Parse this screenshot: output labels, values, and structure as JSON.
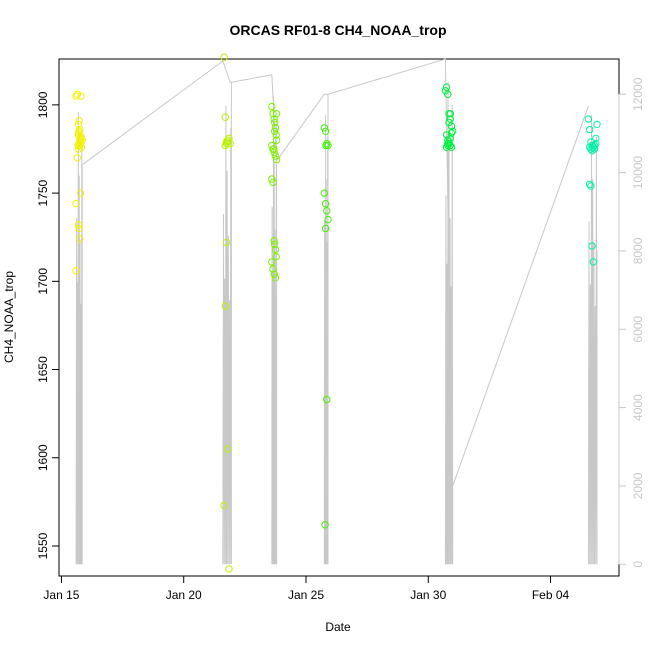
{
  "chart_data": {
    "type": "scatter",
    "title": "ORCAS RF01-8 CH4_NOAA_trop",
    "xlabel": "Date",
    "ylabel": "CH4_NOAA_trop",
    "x_ticks": [
      {
        "label": "Jan 15",
        "day": 15
      },
      {
        "label": "Jan 20",
        "day": 20
      },
      {
        "label": "Jan 25",
        "day": 25
      },
      {
        "label": "Jan 30",
        "day": 30
      },
      {
        "label": "Feb 04",
        "day": 35
      }
    ],
    "xlim": [
      14.9,
      37.8
    ],
    "ylim": [
      1533,
      1826
    ],
    "y_ticks": [
      1550,
      1600,
      1650,
      1700,
      1750,
      1800
    ],
    "y2_ticks": [
      0,
      2000,
      4000,
      6000,
      8000,
      10000,
      12000
    ],
    "y2lim": [
      -300,
      12900
    ],
    "altitude_color": "#c8c8c8",
    "altitude_profiles": [
      {
        "start": 15.6,
        "end": 15.85,
        "top": 12100,
        "level": 10200
      },
      {
        "start": 21.6,
        "end": 21.95,
        "top": 12250,
        "level": 12300
      },
      {
        "start": 23.6,
        "end": 23.8,
        "top": 12500,
        "level": 10200
      },
      {
        "start": 25.75,
        "end": 25.9,
        "top": 12000,
        "level": 12000
      },
      {
        "start": 30.7,
        "end": 31.0,
        "top": 12900,
        "level": 2000
      },
      {
        "start": 36.55,
        "end": 36.9,
        "top": 12000,
        "level": 8000
      }
    ],
    "altitude_connector": [
      [
        15.85,
        10200
      ],
      [
        21.6,
        12850
      ],
      [
        21.9,
        12300
      ],
      [
        23.6,
        12500
      ],
      [
        23.8,
        10300
      ],
      [
        25.75,
        12000
      ],
      [
        25.9,
        12000
      ],
      [
        30.7,
        12900
      ],
      [
        31.0,
        2000
      ],
      [
        36.55,
        11700
      ]
    ],
    "series": [
      {
        "color": "#f2f200",
        "x": [
          15.6,
          15.65,
          15.7,
          15.72,
          15.75,
          15.78,
          15.8,
          15.7,
          15.72,
          15.75,
          15.8,
          15.7,
          15.65,
          15.6,
          15.7,
          15.72,
          15.75,
          15.78,
          15.82,
          15.85,
          15.6,
          15.7,
          15.75,
          15.8,
          15.72,
          15.68
        ],
        "y": [
          1805,
          1806,
          1783,
          1778,
          1777,
          1779,
          1781,
          1789,
          1791,
          1786,
          1805,
          1775,
          1770,
          1744,
          1732,
          1730,
          1724,
          1750,
          1776,
          1780,
          1706,
          1784,
          1780,
          1782,
          1785,
          1777
        ]
      },
      {
        "color": "#b9f200",
        "x": [
          21.65,
          21.7,
          21.75,
          21.8,
          21.85,
          21.9,
          21.7,
          21.75,
          21.8,
          21.65,
          21.7,
          21.75,
          21.8,
          21.85
        ],
        "y": [
          1827,
          1777,
          1778,
          1779,
          1781,
          1778,
          1686,
          1722,
          1605,
          1573,
          1793,
          1779,
          1780,
          1537
        ]
      },
      {
        "color": "#7ef200",
        "x": [
          23.6,
          23.65,
          23.7,
          23.72,
          23.75,
          23.78,
          23.8,
          23.6,
          23.65,
          23.7,
          23.75,
          23.8,
          23.6,
          23.65,
          23.7,
          23.72,
          23.75,
          23.78,
          23.6,
          23.65,
          23.7,
          23.75,
          23.8,
          23.72,
          23.68
        ],
        "y": [
          1799,
          1795,
          1792,
          1790,
          1787,
          1783,
          1780,
          1777,
          1775,
          1773,
          1771,
          1769,
          1758,
          1756,
          1723,
          1721,
          1718,
          1714,
          1711,
          1707,
          1704,
          1702,
          1795,
          1785,
          1775
        ]
      },
      {
        "color": "#3ff200",
        "x": [
          25.75,
          25.8,
          25.85,
          25.9,
          25.75,
          25.8,
          25.85,
          25.9,
          25.8,
          25.85,
          25.78,
          25.82
        ],
        "y": [
          1787,
          1785,
          1778,
          1777,
          1750,
          1744,
          1740,
          1735,
          1730,
          1633,
          1562,
          1777
        ]
      },
      {
        "color": "#00f23f",
        "x": [
          30.7,
          30.75,
          30.8,
          30.85,
          30.9,
          30.95,
          31.0,
          30.75,
          30.8,
          30.85,
          30.9,
          30.95,
          30.8,
          30.85,
          30.9,
          30.75,
          30.8,
          30.85,
          30.9,
          30.95
        ],
        "y": [
          1808,
          1810,
          1806,
          1795,
          1792,
          1788,
          1785,
          1783,
          1780,
          1778,
          1777,
          1776,
          1777,
          1779,
          1781,
          1776,
          1778,
          1790,
          1795,
          1784
        ]
      },
      {
        "color": "#00f2a8",
        "x": [
          36.55,
          36.6,
          36.65,
          36.7,
          36.75,
          36.8,
          36.85,
          36.9,
          36.6,
          36.65,
          36.7,
          36.75,
          36.8,
          36.85,
          36.6,
          36.65,
          36.7
        ],
        "y": [
          1792,
          1786,
          1779,
          1777,
          1776,
          1775,
          1781,
          1789,
          1755,
          1754,
          1720,
          1711,
          1777,
          1778,
          1776,
          1775,
          1774
        ]
      }
    ]
  }
}
